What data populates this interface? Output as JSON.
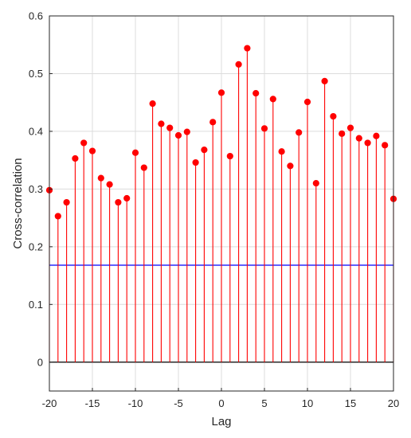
{
  "chart_data": {
    "type": "stem",
    "title": "",
    "xlabel": "Lag",
    "ylabel": "Cross-correlation",
    "xlim": [
      -20,
      20
    ],
    "ylim": [
      -0.05,
      0.6
    ],
    "xticks": [
      -20,
      -15,
      -10,
      -5,
      0,
      5,
      10,
      15,
      20
    ],
    "yticks": [
      0,
      0.1,
      0.2,
      0.3,
      0.4,
      0.5,
      0.6
    ],
    "grid": true,
    "x": [
      -20,
      -19,
      -18,
      -17,
      -16,
      -15,
      -14,
      -13,
      -12,
      -11,
      -10,
      -9,
      -8,
      -7,
      -6,
      -5,
      -4,
      -3,
      -2,
      -1,
      0,
      1,
      2,
      3,
      4,
      5,
      6,
      7,
      8,
      9,
      10,
      11,
      12,
      13,
      14,
      15,
      16,
      17,
      18,
      19,
      20
    ],
    "series": [
      {
        "color": "#ff0000",
        "values": [
          0.298,
          0.253,
          0.277,
          0.353,
          0.38,
          0.366,
          0.319,
          0.308,
          0.277,
          0.284,
          0.363,
          0.337,
          0.448,
          0.413,
          0.406,
          0.393,
          0.399,
          0.346,
          0.368,
          0.416,
          0.467,
          0.357,
          0.516,
          0.544,
          0.466,
          0.405,
          0.456,
          0.365,
          0.34,
          0.398,
          0.451,
          0.31,
          0.487,
          0.426,
          0.396,
          0.406,
          0.388,
          0.38,
          0.392,
          0.376,
          0.283
        ]
      }
    ],
    "reference_lines": [
      {
        "y": 0,
        "color": "#000000"
      },
      {
        "y": 0.168,
        "color": "#0000ff"
      }
    ]
  }
}
